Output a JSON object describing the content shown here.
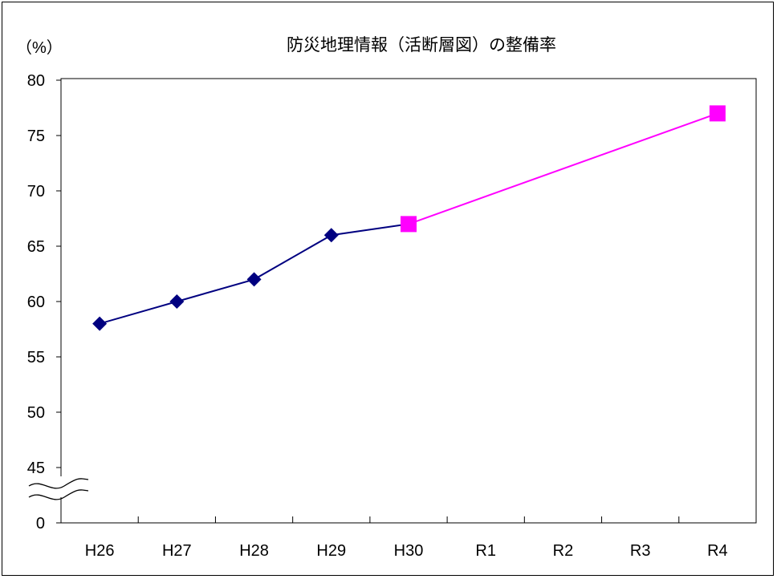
{
  "chart_data": {
    "type": "line",
    "title": "防災地理情報（活断層図）の整備率",
    "ylabel": "（%）",
    "xlabel": "",
    "categories": [
      "H26",
      "H27",
      "H28",
      "H29",
      "H30",
      "R1",
      "R2",
      "R3",
      "R4"
    ],
    "y_ticks": [
      "0",
      "45",
      "50",
      "55",
      "60",
      "65",
      "70",
      "75",
      "80"
    ],
    "ylim": [
      40,
      80
    ],
    "axis_break": true,
    "grid": false,
    "series": [
      {
        "marker": "diamond",
        "color": "#000080",
        "points": [
          {
            "x": "H26",
            "y": 58
          },
          {
            "x": "H27",
            "y": 60
          },
          {
            "x": "H28",
            "y": 62
          },
          {
            "x": "H29",
            "y": 66
          },
          {
            "x": "H30",
            "y": 67
          }
        ]
      },
      {
        "marker": "square",
        "color": "#ff00ff",
        "points": [
          {
            "x": "H30",
            "y": 67
          },
          {
            "x": "R4",
            "y": 77
          }
        ]
      }
    ]
  }
}
